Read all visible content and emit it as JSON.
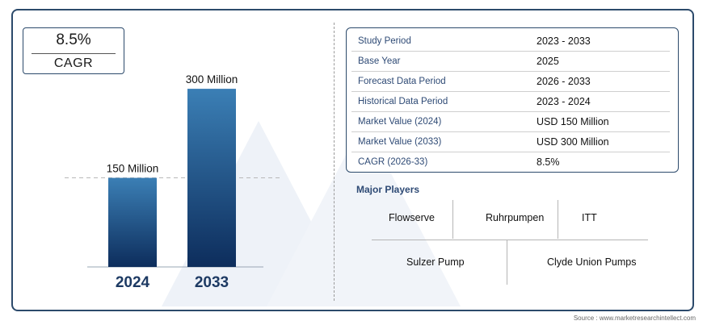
{
  "cagr_box": {
    "value": "8.5%",
    "label": "CAGR"
  },
  "chart_data": {
    "type": "bar",
    "categories": [
      "2024",
      "2033"
    ],
    "values": [
      150,
      300
    ],
    "value_labels": [
      "150 Million",
      "300 Million"
    ],
    "unit": "Million",
    "ylim": [
      0,
      330
    ],
    "grid": false,
    "colors": {
      "bar_top": "#3b7fb5",
      "bar_bottom": "#0d2d5c",
      "category_label": "#1d3a63"
    }
  },
  "info_table": [
    {
      "key": "Study Period",
      "value": "2023 - 2033"
    },
    {
      "key": "Base Year",
      "value": "2025"
    },
    {
      "key": "Forecast Data Period",
      "value": "2026 - 2033"
    },
    {
      "key": "Historical Data Period",
      "value": "2023 - 2024"
    },
    {
      "key": "Market Value (2024)",
      "value": "USD 150 Million"
    },
    {
      "key": "Market Value (2033)",
      "value": "USD 300 Million"
    },
    {
      "key": "CAGR (2026-33)",
      "value": "8.5%"
    }
  ],
  "major_players": {
    "title": "Major Players",
    "names": [
      "Flowserve",
      "Ruhrpumpen",
      "ITT",
      "Sulzer Pump",
      "Clyde Union Pumps"
    ]
  },
  "source": "Source : www.marketresearchintellect.com",
  "colors": {
    "border": "#2c4a6b",
    "key_text": "#2e4a75"
  }
}
